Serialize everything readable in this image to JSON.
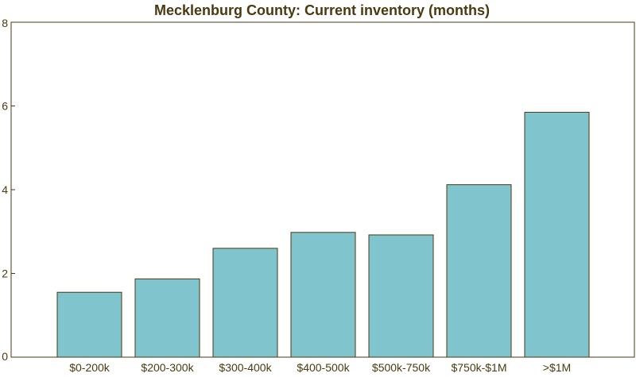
{
  "chart_data": {
    "type": "bar",
    "title": "Mecklenburg County: Current inventory (months)",
    "xlabel": "",
    "ylabel": "",
    "categories": [
      "$0-200k",
      "$200-300k",
      "$300-400k",
      "$400-500k",
      "$500k-750k",
      "$750k-$1M",
      ">$1M"
    ],
    "values": [
      1.55,
      1.87,
      2.6,
      2.98,
      2.92,
      4.12,
      5.85
    ],
    "ylim": [
      0,
      8
    ],
    "yticks": [
      "0",
      "2",
      "4",
      "6",
      "8"
    ],
    "grid": false,
    "legend": "none",
    "colors": {
      "bar_fill": "#80c4ce",
      "bar_stroke": "#4a3a10",
      "axis": "#4a3a10",
      "text": "#4a3a10"
    }
  }
}
